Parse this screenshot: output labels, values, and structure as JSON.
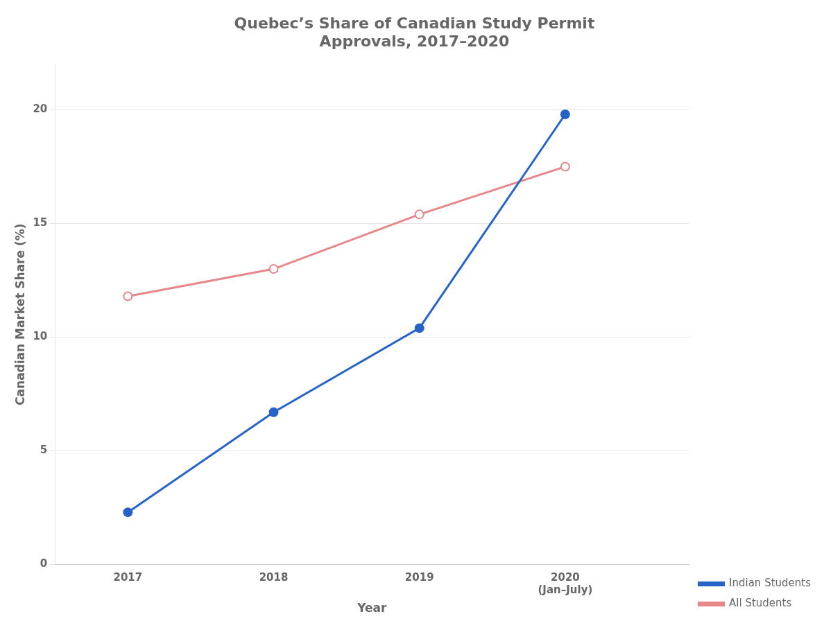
{
  "chart_data": {
    "type": "line",
    "title": "Quebec’s Share of Canadian Study Permit\nApprovals, 2017–2020",
    "x_label": "Year",
    "y_label": "Canadian Market Share (%)",
    "x": [
      2017,
      2018,
      2019,
      2020
    ],
    "series": [
      {
        "name": "Indian Students",
        "color": "#2563c7",
        "marker": "circle",
        "values": [
          2.3,
          6.7,
          10.4,
          19.8
        ]
      },
      {
        "name": "All Students",
        "color": "#e8868a",
        "marker": "open_circle",
        "values": [
          11.8,
          13.0,
          15.4,
          17.5
        ]
      }
    ],
    "xlim": [
      2016.5,
      2020.85
    ],
    "xticks": [
      2017,
      2018,
      2019,
      {
        "value": 2020,
        "label": "2020\n(Jan–July)"
      }
    ],
    "ylim": [
      0,
      22
    ],
    "yticks": [
      0,
      5,
      10,
      15,
      20
    ],
    "grid": "y",
    "legend": "lower right"
  }
}
